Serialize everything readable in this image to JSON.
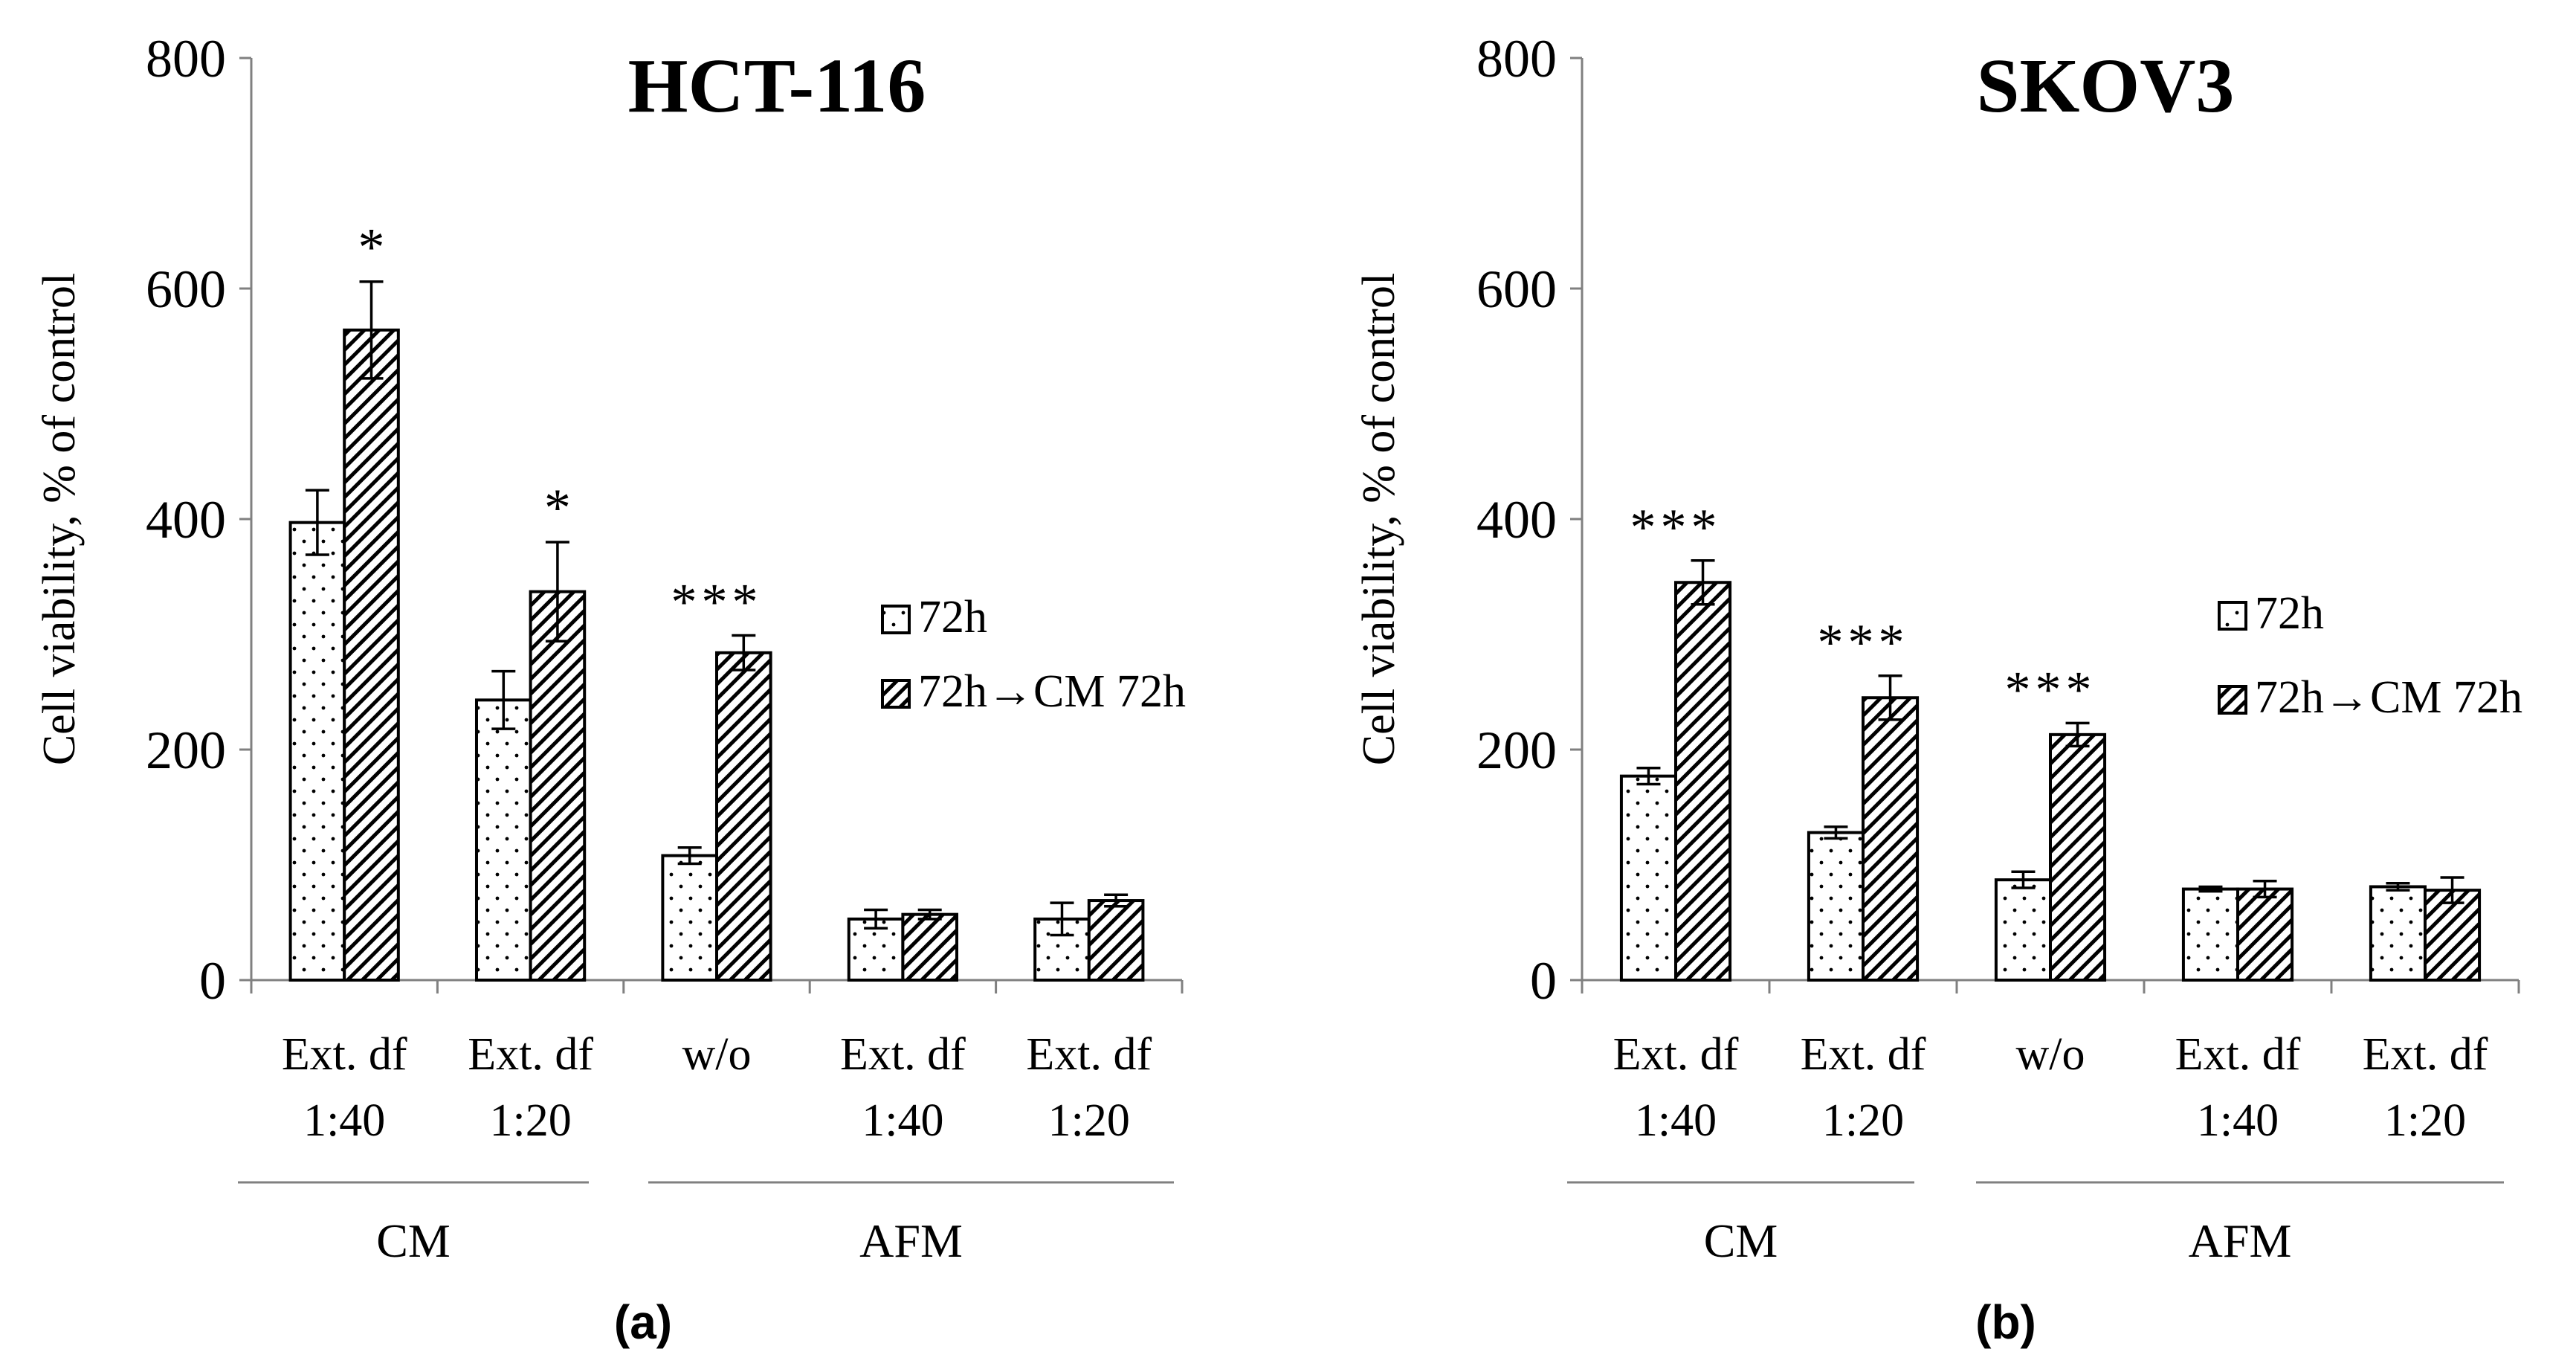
{
  "chart_data": [
    {
      "type": "bar",
      "title": "HCT-116",
      "panel_label": "(a)",
      "ylabel": "Cell viability, % of control",
      "xlabel": "",
      "ylim": [
        0,
        800
      ],
      "yticks": [
        0,
        200,
        400,
        600,
        800
      ],
      "grid": false,
      "legend_position": "right",
      "categories": [
        {
          "line1": "Ext. df",
          "line2": "1:40"
        },
        {
          "line1": "Ext. df",
          "line2": "1:20"
        },
        {
          "line1": "w/o",
          "line2": ""
        },
        {
          "line1": "Ext. df",
          "line2": "1:40"
        },
        {
          "line1": "Ext. df",
          "line2": "1:20"
        }
      ],
      "groups": [
        {
          "label": "CM",
          "span": [
            0,
            1
          ]
        },
        {
          "label": "AFM",
          "span": [
            2,
            4
          ]
        }
      ],
      "series": [
        {
          "name": "72h",
          "pattern": "dots",
          "values": [
            397,
            243,
            108,
            53,
            53
          ],
          "errors": [
            28,
            25,
            7,
            8,
            14
          ],
          "annotations": [
            "",
            "",
            "",
            "",
            ""
          ]
        },
        {
          "name": "72h→CM 72h",
          "pattern": "hatch",
          "values": [
            564,
            337,
            284,
            57,
            69
          ],
          "errors": [
            42,
            43,
            15,
            4,
            5
          ],
          "annotations": [
            "*",
            "*",
            "***",
            "",
            ""
          ]
        }
      ]
    },
    {
      "type": "bar",
      "title": "SKOV3",
      "panel_label": "(b)",
      "ylabel": "Cell viability, % of control",
      "xlabel": "",
      "ylim": [
        0,
        800
      ],
      "yticks": [
        0,
        200,
        400,
        600,
        800
      ],
      "grid": false,
      "legend_position": "right",
      "categories": [
        {
          "line1": "Ext. df",
          "line2": "1:40"
        },
        {
          "line1": "Ext. df",
          "line2": "1:20"
        },
        {
          "line1": "w/o",
          "line2": ""
        },
        {
          "line1": "Ext. df",
          "line2": "1:40"
        },
        {
          "line1": "Ext. df",
          "line2": "1:20"
        }
      ],
      "groups": [
        {
          "label": "CM",
          "span": [
            0,
            1
          ]
        },
        {
          "label": "AFM",
          "span": [
            2,
            4
          ]
        }
      ],
      "series": [
        {
          "name": "72h",
          "pattern": "dots",
          "values": [
            177,
            128,
            87,
            79,
            81
          ],
          "errors": [
            7,
            5,
            7,
            2,
            3
          ],
          "annotations": [
            "",
            "",
            "",
            "",
            ""
          ]
        },
        {
          "name": "72h→CM 72h",
          "pattern": "hatch",
          "values": [
            345,
            245,
            213,
            79,
            78
          ],
          "errors": [
            19,
            19,
            10,
            7,
            11
          ],
          "annotations": [
            "***",
            "***",
            "***",
            "",
            ""
          ]
        }
      ]
    }
  ]
}
